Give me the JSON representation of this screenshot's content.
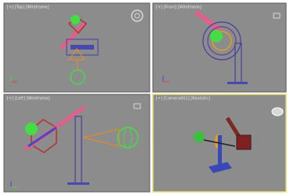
{
  "viewports": [
    {
      "label": "[+] [Top] [Wireframe]"
    },
    {
      "label": "[+] [Front] [Wireframe]"
    },
    {
      "label": "[+] [Left] [Wireframe]"
    },
    {
      "label": "[+] [Camera001] [Realistic]"
    }
  ]
}
